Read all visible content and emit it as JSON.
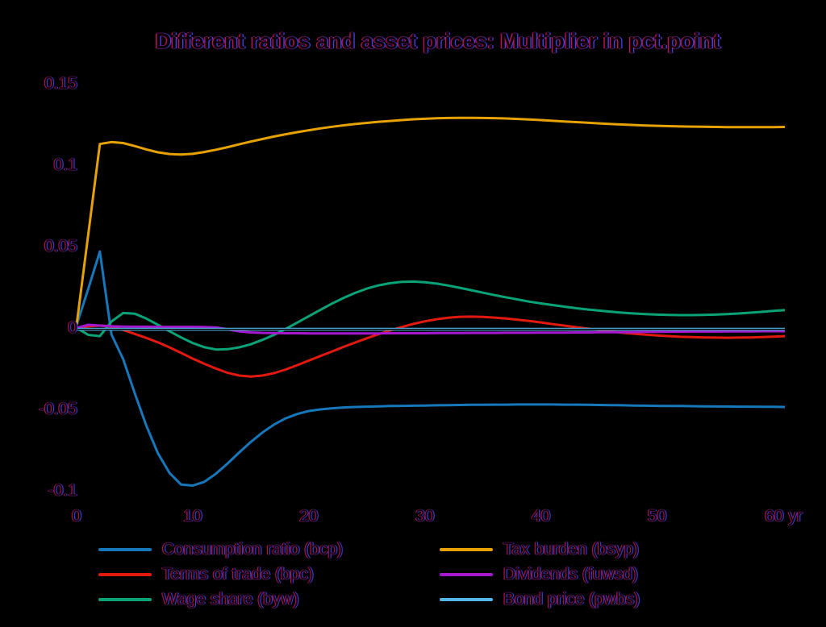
{
  "chart_data": {
    "type": "line",
    "title": "Different ratios and asset prices: Multiplier in pct.point",
    "xlabel": "yr",
    "ylabel": "",
    "xlim": [
      0,
      61
    ],
    "ylim": [
      -0.12,
      0.16
    ],
    "grid": false,
    "legend_position": "below-two-columns",
    "x_start": 0,
    "x_step": 1,
    "x_axis": {
      "tick_values": [
        0,
        10,
        20,
        30,
        40,
        50,
        60
      ],
      "tick_labels": [
        "0",
        "10",
        "20",
        "30",
        "40",
        "50",
        "60 yr"
      ],
      "unit": "yr"
    },
    "y_axis": {
      "tick_values": [
        0.15,
        0.1,
        0.05,
        0,
        -0.05,
        -0.1
      ],
      "tick_labels": [
        "0.15",
        "0.1",
        "0.05",
        "0",
        "-0.05",
        "-0.1"
      ]
    },
    "series": [
      {
        "name": "Consumption ratio (bcp)",
        "color": "#1777bb",
        "values": [
          0.002,
          0.024,
          0.047,
          -0.004,
          -0.019,
          -0.04,
          -0.06,
          -0.077,
          -0.089,
          -0.0962,
          -0.0968,
          -0.0945,
          -0.0895,
          -0.0832,
          -0.0765,
          -0.07,
          -0.0642,
          -0.0593,
          -0.0555,
          -0.0528,
          -0.051,
          -0.05,
          -0.0493,
          -0.0488,
          -0.0485,
          -0.0483,
          -0.0481,
          -0.0479,
          -0.0478,
          -0.0477,
          -0.0476,
          -0.0475,
          -0.0474,
          -0.0473,
          -0.0472,
          -0.0472,
          -0.0471,
          -0.0471,
          -0.047,
          -0.047,
          -0.047,
          -0.047,
          -0.0471,
          -0.0471,
          -0.0472,
          -0.0473,
          -0.0474,
          -0.0475,
          -0.0476,
          -0.0477,
          -0.0478,
          -0.0479,
          -0.0479,
          -0.048,
          -0.0481,
          -0.0482,
          -0.0482,
          -0.0483,
          -0.0483,
          -0.0484,
          -0.0484,
          -0.0485
        ]
      },
      {
        "name": "Terms of trade (bpc)",
        "color": "#e2190e",
        "values": [
          0.0,
          0.001,
          0.0015,
          0.0008,
          -0.0012,
          -0.0036,
          -0.0061,
          -0.0088,
          -0.0119,
          -0.0153,
          -0.0188,
          -0.022,
          -0.0249,
          -0.0275,
          -0.0292,
          -0.0298,
          -0.0292,
          -0.0277,
          -0.0255,
          -0.0228,
          -0.02,
          -0.0172,
          -0.0144,
          -0.0116,
          -0.0089,
          -0.0063,
          -0.0038,
          -0.0015,
          0.0006,
          0.0025,
          0.0041,
          0.0054,
          0.0063,
          0.0069,
          0.007,
          0.0068,
          0.0064,
          0.0058,
          0.0051,
          0.0043,
          0.0034,
          0.0024,
          0.0015,
          0.0005,
          -0.0004,
          -0.0013,
          -0.0021,
          -0.0029,
          -0.0035,
          -0.0041,
          -0.0046,
          -0.005,
          -0.0054,
          -0.0056,
          -0.0058,
          -0.0059,
          -0.006,
          -0.0059,
          -0.0058,
          -0.0056,
          -0.0053,
          -0.005
        ]
      },
      {
        "name": "Wage share (byw)",
        "color": "#09a377",
        "values": [
          0.0,
          -0.0042,
          -0.005,
          0.004,
          0.0092,
          0.0088,
          0.0058,
          0.002,
          -0.002,
          -0.0058,
          -0.0092,
          -0.0118,
          -0.0132,
          -0.013,
          -0.0119,
          -0.01,
          -0.0073,
          -0.0042,
          -0.0006,
          0.0033,
          0.0073,
          0.0112,
          0.015,
          0.0185,
          0.0216,
          0.0242,
          0.0262,
          0.0275,
          0.0283,
          0.0285,
          0.0281,
          0.0273,
          0.0261,
          0.0247,
          0.0232,
          0.0217,
          0.0202,
          0.0188,
          0.0175,
          0.0162,
          0.0151,
          0.0141,
          0.0131,
          0.0122,
          0.0114,
          0.0107,
          0.01,
          0.0094,
          0.0089,
          0.0085,
          0.0082,
          0.008,
          0.0079,
          0.0079,
          0.008,
          0.0082,
          0.0085,
          0.0089,
          0.0094,
          0.0099,
          0.0105,
          0.011
        ]
      },
      {
        "name": "Tax burden (bsyp)",
        "color": "#e6a203",
        "values": [
          0.002,
          0.0575,
          0.113,
          0.1142,
          0.1136,
          0.1118,
          0.1097,
          0.1079,
          0.1069,
          0.1066,
          0.107,
          0.1081,
          0.1095,
          0.1111,
          0.1128,
          0.1145,
          0.1161,
          0.1176,
          0.119,
          0.1203,
          0.1215,
          0.1226,
          0.1236,
          0.1245,
          0.1253,
          0.126,
          0.1267,
          0.1272,
          0.1277,
          0.1282,
          0.1285,
          0.1288,
          0.129,
          0.1291,
          0.1291,
          0.129,
          0.1289,
          0.1287,
          0.1284,
          0.1281,
          0.1277,
          0.1273,
          0.1269,
          0.1265,
          0.1261,
          0.1257,
          0.1253,
          0.125,
          0.1247,
          0.1244,
          0.1242,
          0.124,
          0.1238,
          0.1237,
          0.1236,
          0.1235,
          0.1234,
          0.1234,
          0.1234,
          0.1234,
          0.1234,
          0.1235
        ]
      },
      {
        "name": "Dividends (fuwsd)",
        "color": "#a518cf",
        "values": [
          0.0,
          0.002,
          0.0015,
          0.0011,
          0.0009,
          0.0008,
          0.0008,
          0.0007,
          0.0007,
          0.0007,
          0.0007,
          0.0006,
          0.0004,
          -0.0008,
          -0.0021,
          -0.0027,
          -0.003,
          -0.0031,
          -0.0032,
          -0.0032,
          -0.0033,
          -0.0033,
          -0.0033,
          -0.0033,
          -0.0033,
          -0.0033,
          -0.0033,
          -0.0032,
          -0.0032,
          -0.0032,
          -0.0032,
          -0.0031,
          -0.0031,
          -0.0031,
          -0.003,
          -0.003,
          -0.003,
          -0.0029,
          -0.0029,
          -0.0029,
          -0.0028,
          -0.0028,
          -0.0028,
          -0.0027,
          -0.0027,
          -0.0026,
          -0.0026,
          -0.0025,
          -0.0025,
          -0.0024,
          -0.0024,
          -0.0023,
          -0.0023,
          -0.0022,
          -0.0022,
          -0.0022,
          -0.0021,
          -0.0021,
          -0.0021,
          -0.002,
          -0.002,
          -0.002
        ]
      },
      {
        "name": "Bond price (pwbs)",
        "color": "#55b6e9",
        "core_color": "#000000",
        "values": [
          -0.0008,
          -0.0008,
          -0.0008,
          -0.0008,
          -0.0008,
          -0.0008,
          -0.0008,
          -0.0008,
          -0.0008,
          -0.0008,
          -0.0008,
          -0.0008,
          -0.0008,
          -0.0008,
          -0.0008,
          -0.0008,
          -0.0008,
          -0.0008,
          -0.0008,
          -0.0008,
          -0.0008,
          -0.0008,
          -0.0008,
          -0.0008,
          -0.0008,
          -0.0008,
          -0.0008,
          -0.0008,
          -0.0008,
          -0.0008,
          -0.0008,
          -0.0008,
          -0.0008,
          -0.0008,
          -0.0008,
          -0.0008,
          -0.0008,
          -0.0008,
          -0.0008,
          -0.0008,
          -0.0008,
          -0.0008,
          -0.0008,
          -0.0008,
          -0.0008,
          -0.0008,
          -0.0008,
          -0.0008,
          -0.0008,
          -0.0008,
          -0.0008,
          -0.0008,
          -0.0008,
          -0.0008,
          -0.0008,
          -0.0008,
          -0.0008,
          -0.0008,
          -0.0008,
          -0.0008,
          -0.0008,
          -0.0008
        ]
      }
    ],
    "legend_columns": [
      [
        0,
        1,
        2
      ],
      [
        3,
        4,
        5
      ]
    ]
  },
  "colors": {
    "background": "#000000",
    "consumption_ratio": "#1777bb",
    "terms_of_trade": "#e2190e",
    "wage_share": "#09a377",
    "tax_burden": "#e6a203",
    "dividends": "#a518cf",
    "bond_price": "#55b6e9"
  }
}
